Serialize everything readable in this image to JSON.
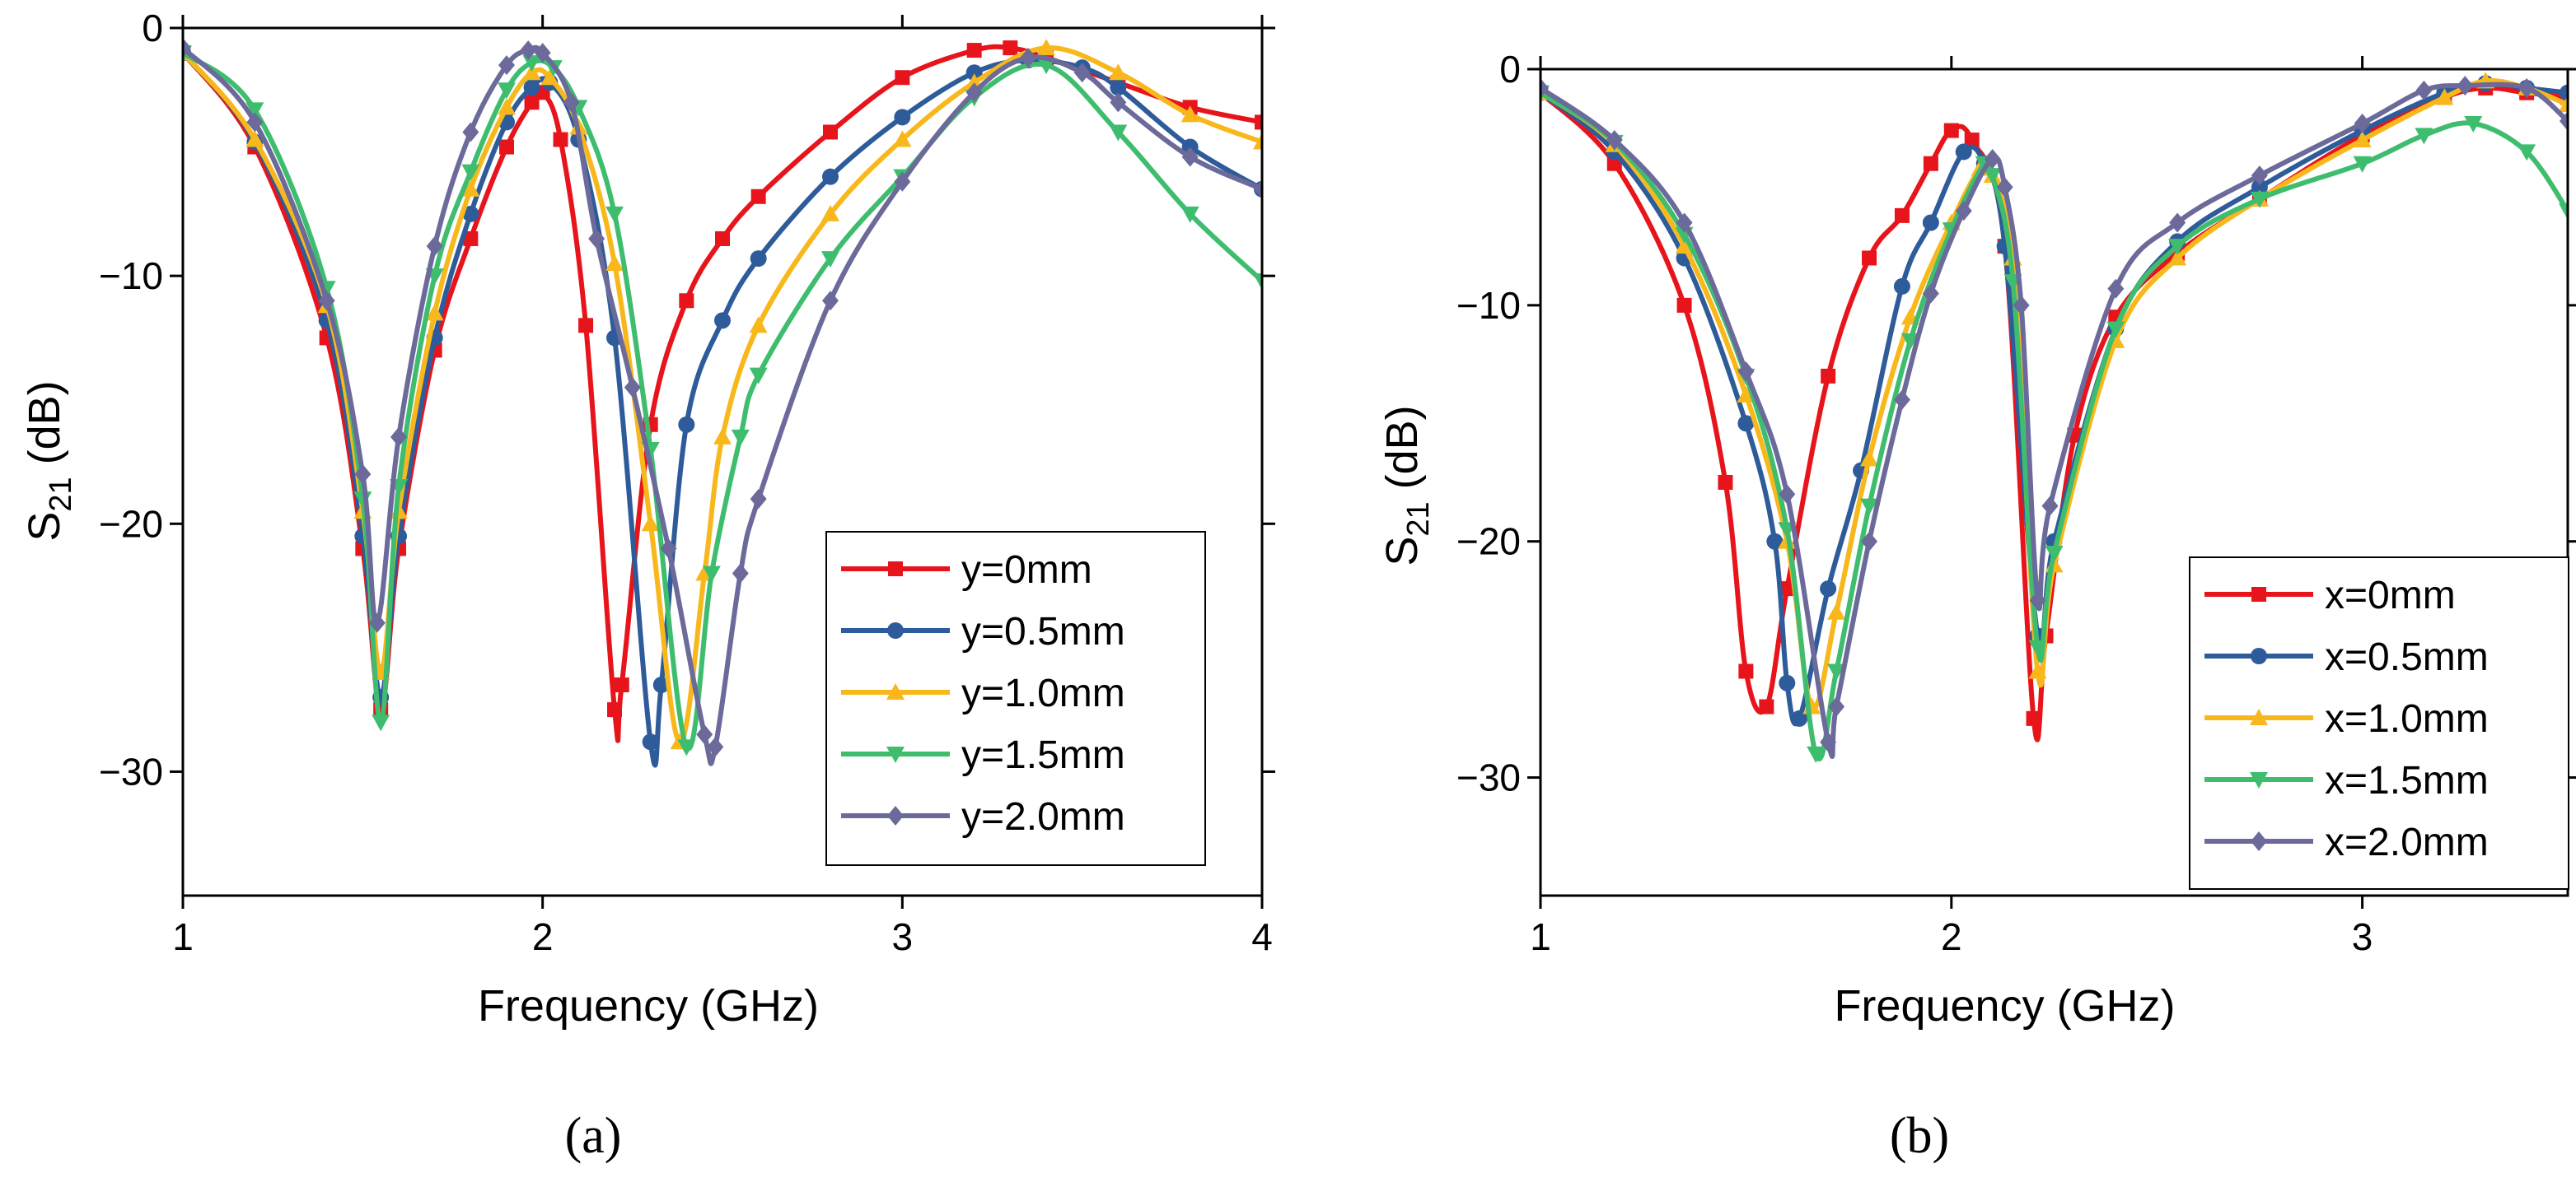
{
  "chart_data": [
    {
      "type": "line",
      "caption": "(a)",
      "xlabel": "Frequency (GHz)",
      "ylabel_main": "S",
      "ylabel_sub": "21",
      "ylabel_unit": " (dB)",
      "xlim": [
        1,
        4
      ],
      "ylim": [
        -35,
        0
      ],
      "xticks": [
        1,
        2,
        3,
        4
      ],
      "yticks": [
        0,
        -10,
        -20,
        -30
      ],
      "xtick_labels": [
        "1",
        "2",
        "3",
        "4"
      ],
      "ytick_labels": [
        "0",
        "−10",
        "−20",
        "−30"
      ],
      "legend_position": "bottom-right",
      "grid": false,
      "series": [
        {
          "name": "y=0mm",
          "color": "#e8141c",
          "marker": "square",
          "points": [
            [
              1.0,
              -1.0
            ],
            [
              1.2,
              -4.8
            ],
            [
              1.4,
              -12.5
            ],
            [
              1.5,
              -21.0
            ],
            [
              1.55,
              -27.5
            ],
            [
              1.6,
              -21.0
            ],
            [
              1.7,
              -13.0
            ],
            [
              1.8,
              -8.5
            ],
            [
              1.9,
              -4.8
            ],
            [
              1.97,
              -3.0
            ],
            [
              2.0,
              -2.6
            ],
            [
              2.05,
              -4.5
            ],
            [
              2.12,
              -12.0
            ],
            [
              2.2,
              -27.5
            ],
            [
              2.22,
              -26.5
            ],
            [
              2.3,
              -16.0
            ],
            [
              2.4,
              -11.0
            ],
            [
              2.5,
              -8.5
            ],
            [
              2.6,
              -6.8
            ],
            [
              2.8,
              -4.2
            ],
            [
              3.0,
              -2.0
            ],
            [
              3.2,
              -0.9
            ],
            [
              3.3,
              -0.8
            ],
            [
              3.4,
              -1.2
            ],
            [
              3.6,
              -2.2
            ],
            [
              3.8,
              -3.2
            ],
            [
              4.0,
              -3.8
            ]
          ]
        },
        {
          "name": "y=0.5mm",
          "color": "#2e5c9a",
          "marker": "circle",
          "points": [
            [
              1.0,
              -1.0
            ],
            [
              1.2,
              -4.6
            ],
            [
              1.4,
              -11.8
            ],
            [
              1.5,
              -20.5
            ],
            [
              1.55,
              -27.0
            ],
            [
              1.6,
              -20.5
            ],
            [
              1.7,
              -12.5
            ],
            [
              1.8,
              -7.5
            ],
            [
              1.9,
              -3.8
            ],
            [
              1.97,
              -2.4
            ],
            [
              2.02,
              -2.2
            ],
            [
              2.1,
              -4.5
            ],
            [
              2.2,
              -12.5
            ],
            [
              2.3,
              -28.8
            ],
            [
              2.33,
              -26.5
            ],
            [
              2.4,
              -16.0
            ],
            [
              2.5,
              -11.8
            ],
            [
              2.6,
              -9.3
            ],
            [
              2.8,
              -6.0
            ],
            [
              3.0,
              -3.6
            ],
            [
              3.2,
              -1.8
            ],
            [
              3.35,
              -1.3
            ],
            [
              3.5,
              -1.6
            ],
            [
              3.6,
              -2.4
            ],
            [
              3.8,
              -4.8
            ],
            [
              4.0,
              -6.5
            ]
          ]
        },
        {
          "name": "y=1.0mm",
          "color": "#f8b81c",
          "marker": "triangle-up",
          "points": [
            [
              1.0,
              -1.0
            ],
            [
              1.2,
              -4.5
            ],
            [
              1.4,
              -11.2
            ],
            [
              1.5,
              -19.5
            ],
            [
              1.55,
              -26.0
            ],
            [
              1.6,
              -19.5
            ],
            [
              1.7,
              -11.5
            ],
            [
              1.8,
              -6.5
            ],
            [
              1.9,
              -3.2
            ],
            [
              1.97,
              -1.8
            ],
            [
              2.02,
              -2.0
            ],
            [
              2.1,
              -4.0
            ],
            [
              2.2,
              -9.5
            ],
            [
              2.3,
              -20.0
            ],
            [
              2.38,
              -28.8
            ],
            [
              2.45,
              -22.0
            ],
            [
              2.5,
              -16.5
            ],
            [
              2.6,
              -12.0
            ],
            [
              2.8,
              -7.5
            ],
            [
              3.0,
              -4.5
            ],
            [
              3.2,
              -2.2
            ],
            [
              3.4,
              -0.8
            ],
            [
              3.6,
              -1.8
            ],
            [
              3.8,
              -3.5
            ],
            [
              4.0,
              -4.6
            ]
          ]
        },
        {
          "name": "y=1.5mm",
          "color": "#3fbd6f",
          "marker": "triangle-down",
          "points": [
            [
              1.0,
              -1.0
            ],
            [
              1.2,
              -3.3
            ],
            [
              1.4,
              -10.5
            ],
            [
              1.5,
              -19.0
            ],
            [
              1.55,
              -28.0
            ],
            [
              1.6,
              -18.5
            ],
            [
              1.7,
              -10.0
            ],
            [
              1.8,
              -5.8
            ],
            [
              1.9,
              -2.5
            ],
            [
              1.97,
              -1.4
            ],
            [
              2.03,
              -1.6
            ],
            [
              2.1,
              -3.2
            ],
            [
              2.2,
              -7.5
            ],
            [
              2.3,
              -17.0
            ],
            [
              2.4,
              -29.0
            ],
            [
              2.47,
              -22.0
            ],
            [
              2.55,
              -16.5
            ],
            [
              2.6,
              -14.0
            ],
            [
              2.8,
              -9.3
            ],
            [
              3.0,
              -6.0
            ],
            [
              3.2,
              -2.8
            ],
            [
              3.4,
              -1.5
            ],
            [
              3.6,
              -4.2
            ],
            [
              3.8,
              -7.5
            ],
            [
              4.0,
              -10.2
            ]
          ]
        },
        {
          "name": "y=2.0mm",
          "color": "#6b6a9a",
          "marker": "diamond",
          "points": [
            [
              1.0,
              -0.8
            ],
            [
              1.2,
              -3.8
            ],
            [
              1.4,
              -11.0
            ],
            [
              1.5,
              -18.0
            ],
            [
              1.54,
              -24.0
            ],
            [
              1.6,
              -16.5
            ],
            [
              1.7,
              -8.8
            ],
            [
              1.8,
              -4.2
            ],
            [
              1.9,
              -1.5
            ],
            [
              1.96,
              -0.9
            ],
            [
              2.0,
              -1.0
            ],
            [
              2.08,
              -3.0
            ],
            [
              2.15,
              -8.5
            ],
            [
              2.25,
              -14.5
            ],
            [
              2.35,
              -21.0
            ],
            [
              2.45,
              -28.5
            ],
            [
              2.48,
              -29.0
            ],
            [
              2.55,
              -22.0
            ],
            [
              2.6,
              -19.0
            ],
            [
              2.8,
              -11.0
            ],
            [
              3.0,
              -6.2
            ],
            [
              3.2,
              -2.6
            ],
            [
              3.35,
              -1.2
            ],
            [
              3.5,
              -1.8
            ],
            [
              3.6,
              -3.0
            ],
            [
              3.8,
              -5.2
            ],
            [
              4.0,
              -6.5
            ]
          ]
        }
      ]
    },
    {
      "type": "line",
      "caption": "(b)",
      "xlabel": "Frequency (GHz)",
      "ylabel_main": "S",
      "ylabel_sub": "21",
      "ylabel_unit": " (dB)",
      "xlim": [
        1,
        3.5
      ],
      "ylim": [
        -35,
        0
      ],
      "xticks": [
        1,
        2,
        3
      ],
      "yticks": [
        0,
        -10,
        -20,
        -30
      ],
      "xtick_labels": [
        "1",
        "2",
        "3"
      ],
      "ytick_labels": [
        "0",
        "−10",
        "−20",
        "−30"
      ],
      "legend_position": "bottom-right",
      "grid": false,
      "series": [
        {
          "name": "x=0mm",
          "color": "#e8141c",
          "marker": "square",
          "points": [
            [
              1.0,
              -1.0
            ],
            [
              1.18,
              -4.0
            ],
            [
              1.35,
              -10.0
            ],
            [
              1.45,
              -17.5
            ],
            [
              1.5,
              -25.5
            ],
            [
              1.55,
              -27.0
            ],
            [
              1.6,
              -22.0
            ],
            [
              1.7,
              -13.0
            ],
            [
              1.8,
              -8.0
            ],
            [
              1.88,
              -6.2
            ],
            [
              1.95,
              -4.0
            ],
            [
              2.0,
              -2.6
            ],
            [
              2.05,
              -3.0
            ],
            [
              2.13,
              -7.5
            ],
            [
              2.2,
              -27.5
            ],
            [
              2.23,
              -24.0
            ],
            [
              2.3,
              -15.5
            ],
            [
              2.4,
              -10.5
            ],
            [
              2.55,
              -7.8
            ],
            [
              2.75,
              -5.5
            ],
            [
              3.0,
              -2.8
            ],
            [
              3.2,
              -1.2
            ],
            [
              3.3,
              -0.8
            ],
            [
              3.4,
              -1.0
            ],
            [
              3.5,
              -1.2
            ]
          ]
        },
        {
          "name": "x=0.5mm",
          "color": "#2e5c9a",
          "marker": "circle",
          "points": [
            [
              1.0,
              -1.0
            ],
            [
              1.18,
              -3.5
            ],
            [
              1.35,
              -8.0
            ],
            [
              1.5,
              -15.0
            ],
            [
              1.57,
              -20.0
            ],
            [
              1.6,
              -26.0
            ],
            [
              1.63,
              -27.5
            ],
            [
              1.7,
              -22.0
            ],
            [
              1.78,
              -17.0
            ],
            [
              1.88,
              -9.2
            ],
            [
              1.95,
              -6.5
            ],
            [
              2.03,
              -3.5
            ],
            [
              2.08,
              -4.0
            ],
            [
              2.13,
              -7.5
            ],
            [
              2.21,
              -24.0
            ],
            [
              2.25,
              -20.0
            ],
            [
              2.4,
              -11.0
            ],
            [
              2.55,
              -7.3
            ],
            [
              2.75,
              -5.0
            ],
            [
              3.0,
              -2.6
            ],
            [
              3.2,
              -1.0
            ],
            [
              3.3,
              -0.6
            ],
            [
              3.4,
              -0.8
            ],
            [
              3.5,
              -1.0
            ]
          ]
        },
        {
          "name": "x=1.0mm",
          "color": "#f8b81c",
          "marker": "triangle-up",
          "points": [
            [
              1.0,
              -1.0
            ],
            [
              1.18,
              -3.2
            ],
            [
              1.35,
              -7.5
            ],
            [
              1.5,
              -13.8
            ],
            [
              1.6,
              -20.0
            ],
            [
              1.66,
              -27.0
            ],
            [
              1.72,
              -23.0
            ],
            [
              1.8,
              -16.5
            ],
            [
              1.9,
              -10.5
            ],
            [
              2.0,
              -6.5
            ],
            [
              2.07,
              -4.2
            ],
            [
              2.1,
              -4.5
            ],
            [
              2.15,
              -8.0
            ],
            [
              2.21,
              -25.5
            ],
            [
              2.25,
              -21.0
            ],
            [
              2.4,
              -11.5
            ],
            [
              2.55,
              -8.0
            ],
            [
              2.75,
              -5.5
            ],
            [
              3.0,
              -3.0
            ],
            [
              3.2,
              -1.2
            ],
            [
              3.3,
              -0.5
            ],
            [
              3.4,
              -0.8
            ],
            [
              3.5,
              -1.5
            ]
          ]
        },
        {
          "name": "x=1.5mm",
          "color": "#3fbd6f",
          "marker": "triangle-down",
          "points": [
            [
              1.0,
              -1.0
            ],
            [
              1.18,
              -3.1
            ],
            [
              1.35,
              -7.0
            ],
            [
              1.5,
              -13.0
            ],
            [
              1.6,
              -19.5
            ],
            [
              1.67,
              -29.0
            ],
            [
              1.72,
              -25.5
            ],
            [
              1.8,
              -18.5
            ],
            [
              1.9,
              -11.5
            ],
            [
              2.0,
              -6.8
            ],
            [
              2.08,
              -4.0
            ],
            [
              2.1,
              -4.5
            ],
            [
              2.15,
              -9.0
            ],
            [
              2.21,
              -24.5
            ],
            [
              2.25,
              -20.5
            ],
            [
              2.4,
              -11.0
            ],
            [
              2.55,
              -7.5
            ],
            [
              2.75,
              -5.5
            ],
            [
              3.0,
              -4.0
            ],
            [
              3.15,
              -2.8
            ],
            [
              3.27,
              -2.3
            ],
            [
              3.4,
              -3.5
            ],
            [
              3.5,
              -6.0
            ]
          ]
        },
        {
          "name": "x=2.0mm",
          "color": "#6b6a9a",
          "marker": "diamond",
          "points": [
            [
              1.0,
              -0.8
            ],
            [
              1.18,
              -3.0
            ],
            [
              1.35,
              -6.5
            ],
            [
              1.5,
              -12.8
            ],
            [
              1.6,
              -18.0
            ],
            [
              1.7,
              -28.5
            ],
            [
              1.72,
              -27.0
            ],
            [
              1.8,
              -20.0
            ],
            [
              1.88,
              -14.0
            ],
            [
              1.95,
              -9.5
            ],
            [
              2.03,
              -6.0
            ],
            [
              2.1,
              -3.8
            ],
            [
              2.13,
              -5.0
            ],
            [
              2.17,
              -10.0
            ],
            [
              2.21,
              -22.5
            ],
            [
              2.24,
              -18.5
            ],
            [
              2.4,
              -9.3
            ],
            [
              2.55,
              -6.5
            ],
            [
              2.75,
              -4.5
            ],
            [
              3.0,
              -2.3
            ],
            [
              3.15,
              -0.9
            ],
            [
              3.25,
              -0.7
            ],
            [
              3.4,
              -0.8
            ],
            [
              3.5,
              -2.2
            ]
          ]
        }
      ]
    }
  ]
}
